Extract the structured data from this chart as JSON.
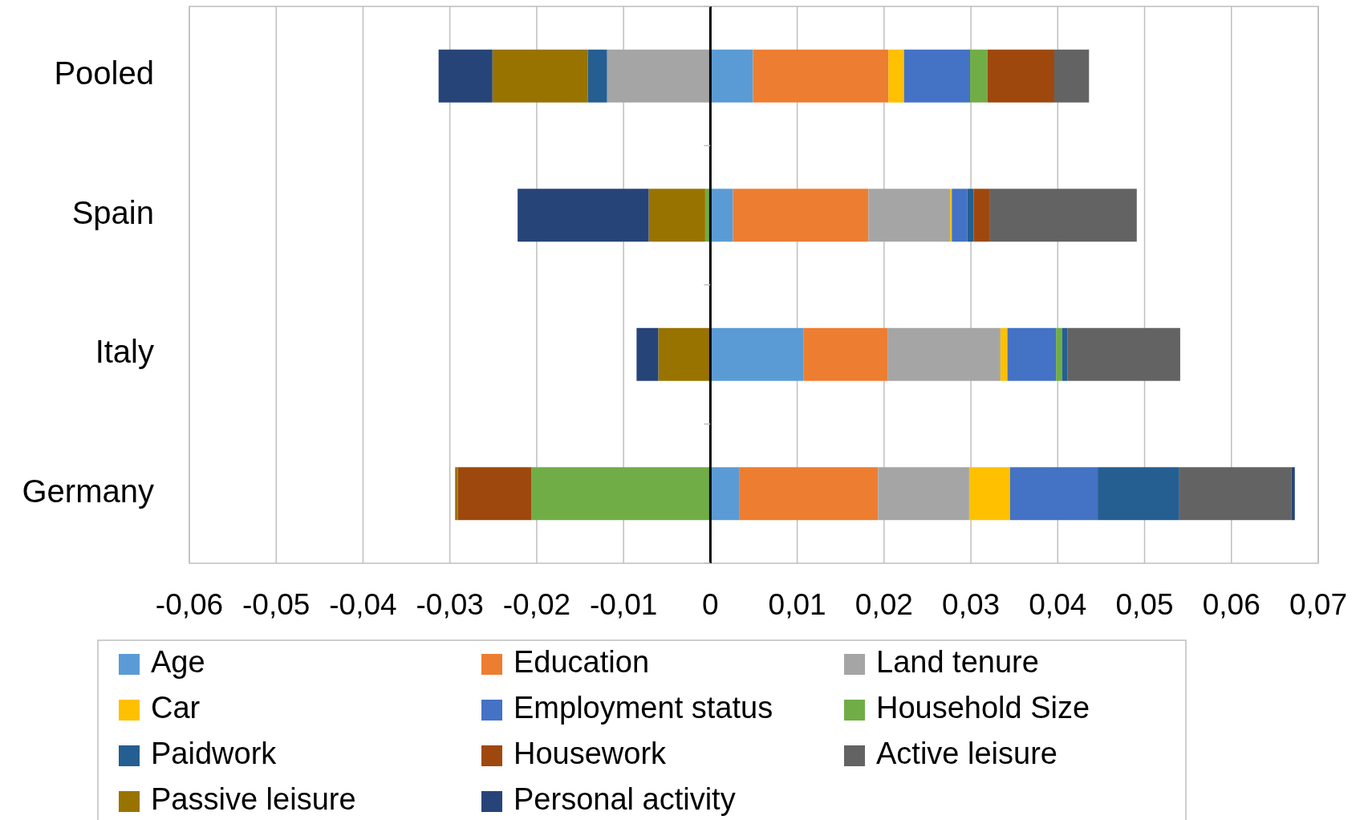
{
  "chart_data": {
    "type": "bar",
    "orientation": "horizontal",
    "stacked": true,
    "categories": [
      "Pooled",
      "Spain",
      "Italy",
      "Germany"
    ],
    "series": [
      {
        "name": "Age",
        "color": "#5b9bd5",
        "values": [
          0.0049,
          0.0026,
          0.0107,
          0.0033
        ]
      },
      {
        "name": "Education",
        "color": "#ed7d31",
        "values": [
          0.0156,
          0.0156,
          0.0097,
          0.016
        ]
      },
      {
        "name": "Land tenure",
        "color": "#a5a5a5",
        "values": [
          -0.0119,
          0.0094,
          0.013,
          0.0105
        ]
      },
      {
        "name": "Car",
        "color": "#ffc000",
        "values": [
          0.0018,
          0.0002,
          0.0008,
          0.0047
        ]
      },
      {
        "name": "Employment status",
        "color": "#4472c4",
        "values": [
          0.0076,
          0.0018,
          0.0056,
          0.0101
        ]
      },
      {
        "name": "Household Size",
        "color": "#70ad47",
        "values": [
          0.002,
          -0.0006,
          0.0007,
          -0.0206
        ]
      },
      {
        "name": "Paidwork",
        "color": "#255e91",
        "values": [
          -0.0022,
          0.0007,
          0.0006,
          0.0094
        ]
      },
      {
        "name": "Housework",
        "color": "#9e480e",
        "values": [
          0.0077,
          0.0019,
          null,
          -0.0085
        ]
      },
      {
        "name": "Active leisure",
        "color": "#636363",
        "values": [
          0.004,
          0.0169,
          0.013,
          0.0129
        ]
      },
      {
        "name": "Passive leisure",
        "color": "#997300",
        "values": [
          -0.011,
          -0.0065,
          -0.006,
          -0.0003
        ]
      },
      {
        "name": "Personal activity",
        "color": "#264478",
        "values": [
          -0.0062,
          -0.0151,
          -0.0025,
          0.0004
        ]
      }
    ],
    "xlim": [
      -0.06,
      0.07
    ],
    "xticks": [
      {
        "value": -0.06,
        "label": "-0,06"
      },
      {
        "value": -0.05,
        "label": "-0,05"
      },
      {
        "value": -0.04,
        "label": "-0,04"
      },
      {
        "value": -0.03,
        "label": "-0,03"
      },
      {
        "value": -0.02,
        "label": "-0,02"
      },
      {
        "value": -0.01,
        "label": "-0,01"
      },
      0,
      {
        "value": 0.01,
        "label": "0,01"
      },
      {
        "value": 0.02,
        "label": "0,02"
      },
      {
        "value": 0.03,
        "label": "0,03"
      },
      {
        "value": 0.04,
        "label": "0,04"
      },
      {
        "value": 0.05,
        "label": "0,05"
      },
      {
        "value": 0.06,
        "label": "0,06"
      },
      {
        "value": 0.07,
        "label": "0,07"
      }
    ],
    "grid": "x",
    "legend": "bottom"
  }
}
